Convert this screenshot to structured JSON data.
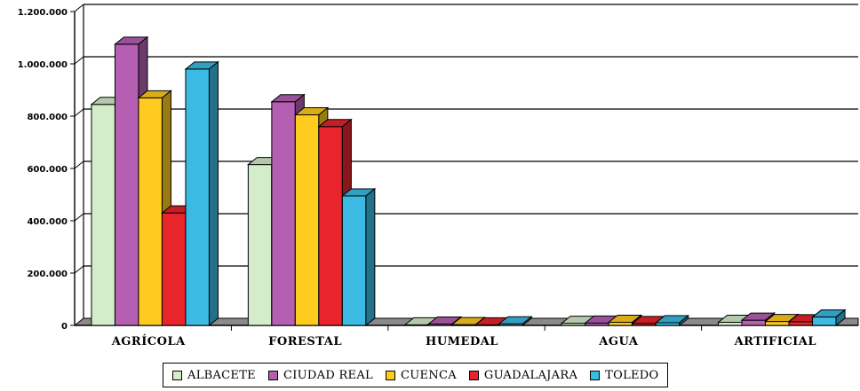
{
  "chart_data": {
    "type": "bar",
    "title": "",
    "xlabel": "",
    "ylabel": "",
    "ylim": [
      0,
      1200000
    ],
    "y_ticks": [
      "0",
      "200.000",
      "400.000",
      "600.000",
      "800.000",
      "1.000.000",
      "1.200.000"
    ],
    "y_tick_values": [
      0,
      200000,
      400000,
      600000,
      800000,
      1000000,
      1200000
    ],
    "categories": [
      "AGRÍCOLA",
      "FORESTAL",
      "HUMEDAL",
      "AGUA",
      "ARTIFICIAL"
    ],
    "series": [
      {
        "name": "ALBACETE",
        "color": "#d4ecc9",
        "values": [
          845000,
          615000,
          2000,
          8000,
          12000
        ]
      },
      {
        "name": "CIUDAD REAL",
        "color": "#b45fb2",
        "values": [
          1075000,
          855000,
          5000,
          9000,
          20000
        ]
      },
      {
        "name": "CUENCA",
        "color": "#ffcb1f",
        "values": [
          870000,
          805000,
          3000,
          12000,
          15000
        ]
      },
      {
        "name": "GUADALAJARA",
        "color": "#e8252c",
        "values": [
          430000,
          760000,
          2000,
          7000,
          14000
        ]
      },
      {
        "name": "TOLEDO",
        "color": "#3bbbe4",
        "values": [
          980000,
          495000,
          6000,
          10000,
          32000
        ]
      }
    ],
    "grid": true,
    "legend_position": "bottom",
    "style": "3d"
  }
}
